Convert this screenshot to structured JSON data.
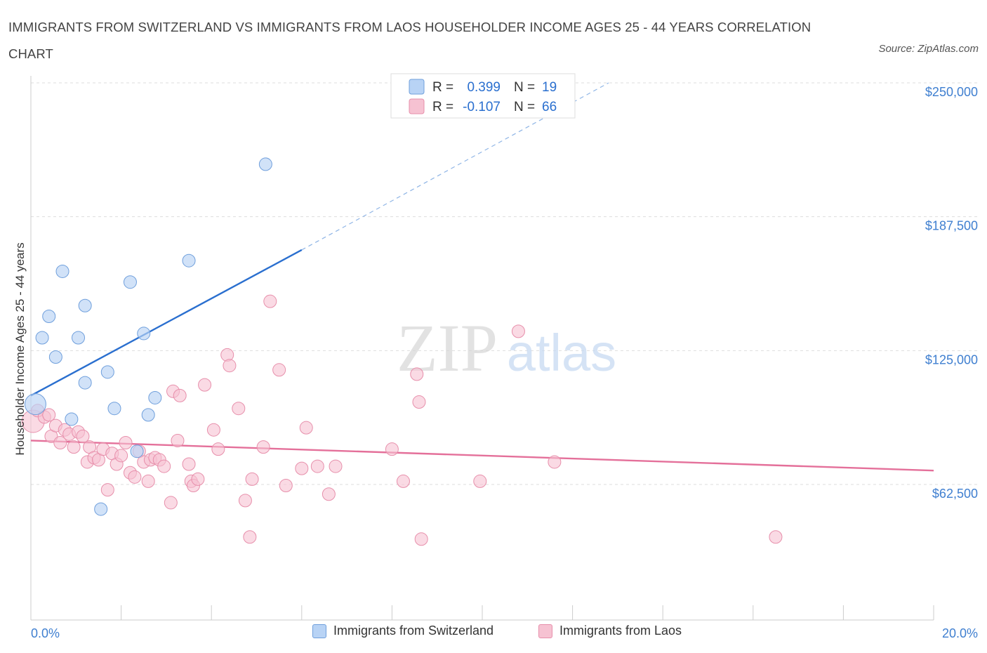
{
  "header": {
    "title": "IMMIGRANTS FROM SWITZERLAND VS IMMIGRANTS FROM LAOS HOUSEHOLDER INCOME AGES 25 - 44 YEARS CORRELATION CHART",
    "source": "Source: ZipAtlas.com"
  },
  "watermark": {
    "zip": "ZIP",
    "atlas": "atlas"
  },
  "legend_box": {
    "rows": [
      {
        "r_label": "R = ",
        "r_value": "0.399",
        "n_label": "N = ",
        "n_value": "19"
      },
      {
        "r_label": "R = ",
        "r_value": "-0.107",
        "n_label": "N = ",
        "n_value": "66"
      }
    ]
  },
  "colors": {
    "blue_fill": "#b8d3f5",
    "blue_stroke": "#6f9fdc",
    "blue_line": "#2a6fcf",
    "pink_fill": "#f6c2d2",
    "pink_stroke": "#e78fab",
    "pink_line": "#e4709a",
    "axis_value": "#3f7fd0",
    "grid": "#dddddd"
  },
  "chart_data": {
    "type": "scatter",
    "title": "IMMIGRANTS FROM SWITZERLAND VS IMMIGRANTS FROM LAOS HOUSEHOLDER INCOME AGES 25 - 44 YEARS CORRELATION CHART",
    "xlabel": "",
    "ylabel": "Householder Income Ages 25 - 44 years",
    "xlim": [
      0,
      20
    ],
    "ylim": [
      10000,
      260000
    ],
    "x_tick_labels": [
      "0.0%",
      "20.0%"
    ],
    "y_ticks": [
      62500,
      125000,
      187500,
      250000
    ],
    "y_tick_labels": [
      "$62,500",
      "$125,000",
      "$187,500",
      "$250,000"
    ],
    "grid": true,
    "legend_position": "top-center",
    "series": [
      {
        "name": "Immigrants from Switzerland",
        "R": 0.399,
        "N": 19,
        "trend": {
          "x0": 0,
          "y0": 104000,
          "x1": 6,
          "y1": 172000,
          "dashed_to_x": 12.8,
          "dashed_to_y": 250000
        },
        "points": [
          [
            0.1,
            100000
          ],
          [
            0.25,
            131000
          ],
          [
            0.4,
            141000
          ],
          [
            0.55,
            122000
          ],
          [
            0.7,
            162000
          ],
          [
            0.9,
            93000
          ],
          [
            1.05,
            131000
          ],
          [
            1.2,
            146000
          ],
          [
            1.2,
            110000
          ],
          [
            1.7,
            115000
          ],
          [
            1.85,
            98000
          ],
          [
            2.2,
            157000
          ],
          [
            2.35,
            78000
          ],
          [
            2.5,
            133000
          ],
          [
            2.6,
            95000
          ],
          [
            2.75,
            103000
          ],
          [
            3.5,
            167000
          ],
          [
            5.2,
            212000
          ],
          [
            1.55,
            51000
          ]
        ]
      },
      {
        "name": "Immigrants from Laos",
        "R": -0.107,
        "N": 66,
        "trend": {
          "x0": 0,
          "y0": 83000,
          "x1": 20,
          "y1": 69000
        },
        "points": [
          [
            0.05,
            92000
          ],
          [
            0.15,
            97000
          ],
          [
            0.3,
            94000
          ],
          [
            0.4,
            95000
          ],
          [
            0.45,
            85000
          ],
          [
            0.55,
            90000
          ],
          [
            0.65,
            82000
          ],
          [
            0.75,
            88000
          ],
          [
            0.85,
            86000
          ],
          [
            0.95,
            80000
          ],
          [
            1.05,
            87000
          ],
          [
            1.15,
            85000
          ],
          [
            1.25,
            73000
          ],
          [
            1.3,
            80000
          ],
          [
            1.4,
            75000
          ],
          [
            1.5,
            74000
          ],
          [
            1.6,
            79000
          ],
          [
            1.7,
            60000
          ],
          [
            1.8,
            77000
          ],
          [
            1.9,
            72000
          ],
          [
            2.0,
            76000
          ],
          [
            2.1,
            82000
          ],
          [
            2.2,
            68000
          ],
          [
            2.3,
            66000
          ],
          [
            2.4,
            78000
          ],
          [
            2.5,
            73000
          ],
          [
            2.6,
            64000
          ],
          [
            2.65,
            74000
          ],
          [
            2.75,
            75000
          ],
          [
            2.85,
            74000
          ],
          [
            2.95,
            71000
          ],
          [
            3.1,
            54000
          ],
          [
            3.15,
            106000
          ],
          [
            3.3,
            104000
          ],
          [
            3.25,
            83000
          ],
          [
            3.5,
            72000
          ],
          [
            3.55,
            64000
          ],
          [
            3.6,
            62000
          ],
          [
            3.7,
            65000
          ],
          [
            3.85,
            109000
          ],
          [
            4.05,
            88000
          ],
          [
            4.15,
            79000
          ],
          [
            4.35,
            123000
          ],
          [
            4.4,
            118000
          ],
          [
            4.6,
            98000
          ],
          [
            4.75,
            55000
          ],
          [
            4.85,
            38000
          ],
          [
            4.9,
            65000
          ],
          [
            5.15,
            80000
          ],
          [
            5.3,
            148000
          ],
          [
            5.5,
            116000
          ],
          [
            5.65,
            62000
          ],
          [
            6.0,
            70000
          ],
          [
            6.1,
            89000
          ],
          [
            6.35,
            71000
          ],
          [
            6.6,
            58000
          ],
          [
            6.75,
            71000
          ],
          [
            8.0,
            79000
          ],
          [
            8.25,
            64000
          ],
          [
            8.55,
            114000
          ],
          [
            8.6,
            101000
          ],
          [
            8.65,
            37000
          ],
          [
            9.95,
            64000
          ],
          [
            10.8,
            134000
          ],
          [
            11.6,
            73000
          ],
          [
            16.5,
            38000
          ]
        ]
      }
    ]
  },
  "y_axis_label": "Householder Income Ages 25 - 44 years",
  "x_axis": {
    "min_label": "0.0%",
    "max_label": "20.0%"
  },
  "legend_bottom": [
    {
      "label": "Immigrants from Switzerland"
    },
    {
      "label": "Immigrants from Laos"
    }
  ]
}
